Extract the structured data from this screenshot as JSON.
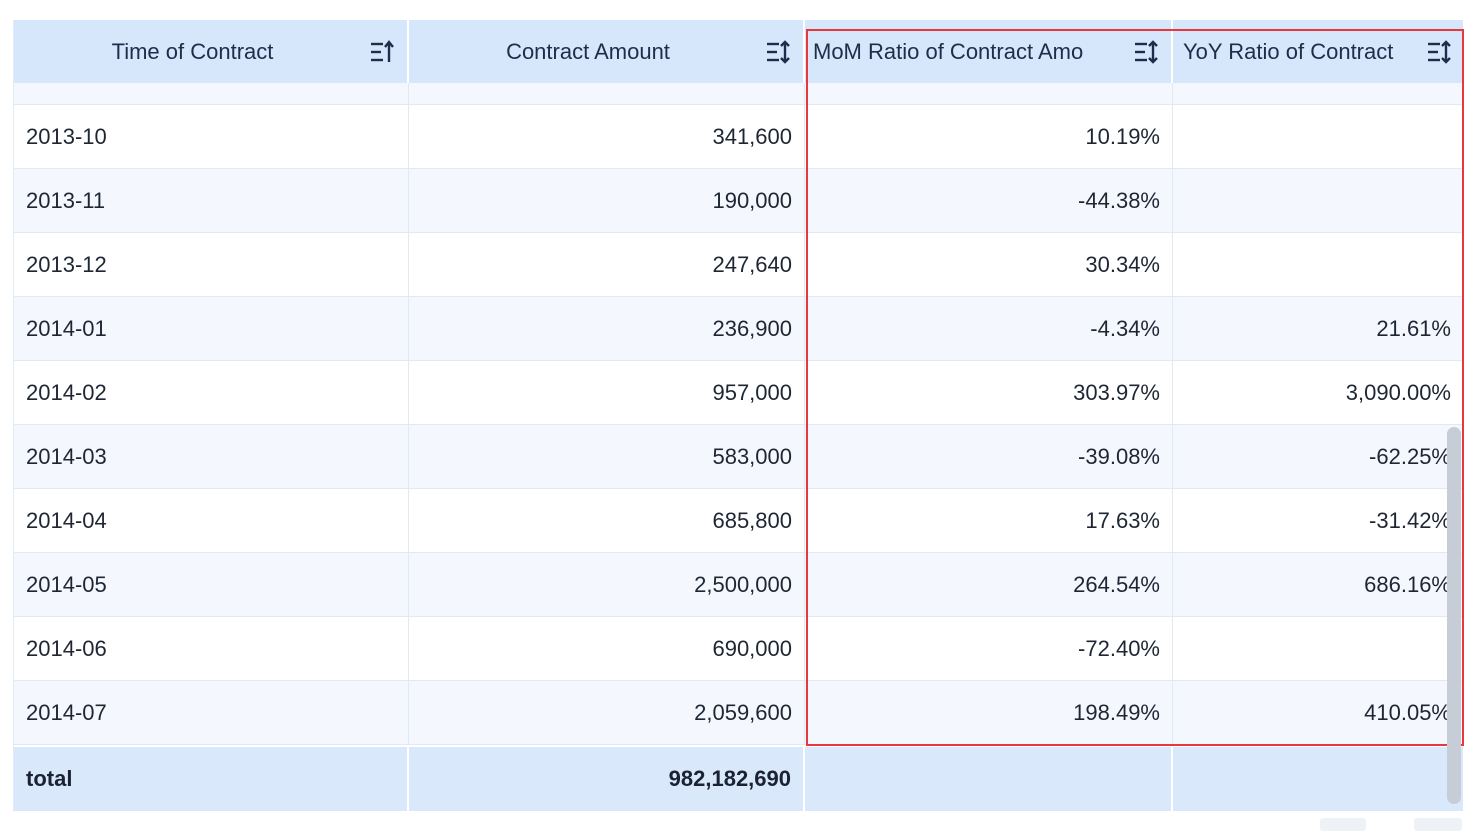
{
  "table": {
    "columns": [
      {
        "label": "Time of Contract",
        "sort_icon": "sort-ascending-icon"
      },
      {
        "label": "Contract Amount",
        "sort_icon": "sort-icon"
      },
      {
        "label": "MoM Ratio of Contract Amo",
        "sort_icon": "sort-icon"
      },
      {
        "label": "YoY Ratio of Contract",
        "sort_icon": "sort-icon"
      }
    ],
    "rows": [
      {
        "time": "2013-10",
        "amount": "341,600",
        "mom": "10.19%",
        "yoy": ""
      },
      {
        "time": "2013-11",
        "amount": "190,000",
        "mom": "-44.38%",
        "yoy": ""
      },
      {
        "time": "2013-12",
        "amount": "247,640",
        "mom": "30.34%",
        "yoy": ""
      },
      {
        "time": "2014-01",
        "amount": "236,900",
        "mom": "-4.34%",
        "yoy": "21.61%"
      },
      {
        "time": "2014-02",
        "amount": "957,000",
        "mom": "303.97%",
        "yoy": "3,090.00%"
      },
      {
        "time": "2014-03",
        "amount": "583,000",
        "mom": "-39.08%",
        "yoy": "-62.25%"
      },
      {
        "time": "2014-04",
        "amount": "685,800",
        "mom": "17.63%",
        "yoy": "-31.42%"
      },
      {
        "time": "2014-05",
        "amount": "2,500,000",
        "mom": "264.54%",
        "yoy": "686.16%"
      },
      {
        "time": "2014-06",
        "amount": "690,000",
        "mom": "-72.40%",
        "yoy": ""
      },
      {
        "time": "2014-07",
        "amount": "2,059,600",
        "mom": "198.49%",
        "yoy": "410.05%"
      }
    ],
    "footer": {
      "label": "total",
      "amount": "982,182,690",
      "mom": "",
      "yoy": ""
    }
  },
  "colors": {
    "header_bg": "#d6e6fb",
    "row_alt_bg": "#f4f8fe",
    "footer_bg": "#d9e8fb",
    "highlight_border": "#e8383d"
  }
}
